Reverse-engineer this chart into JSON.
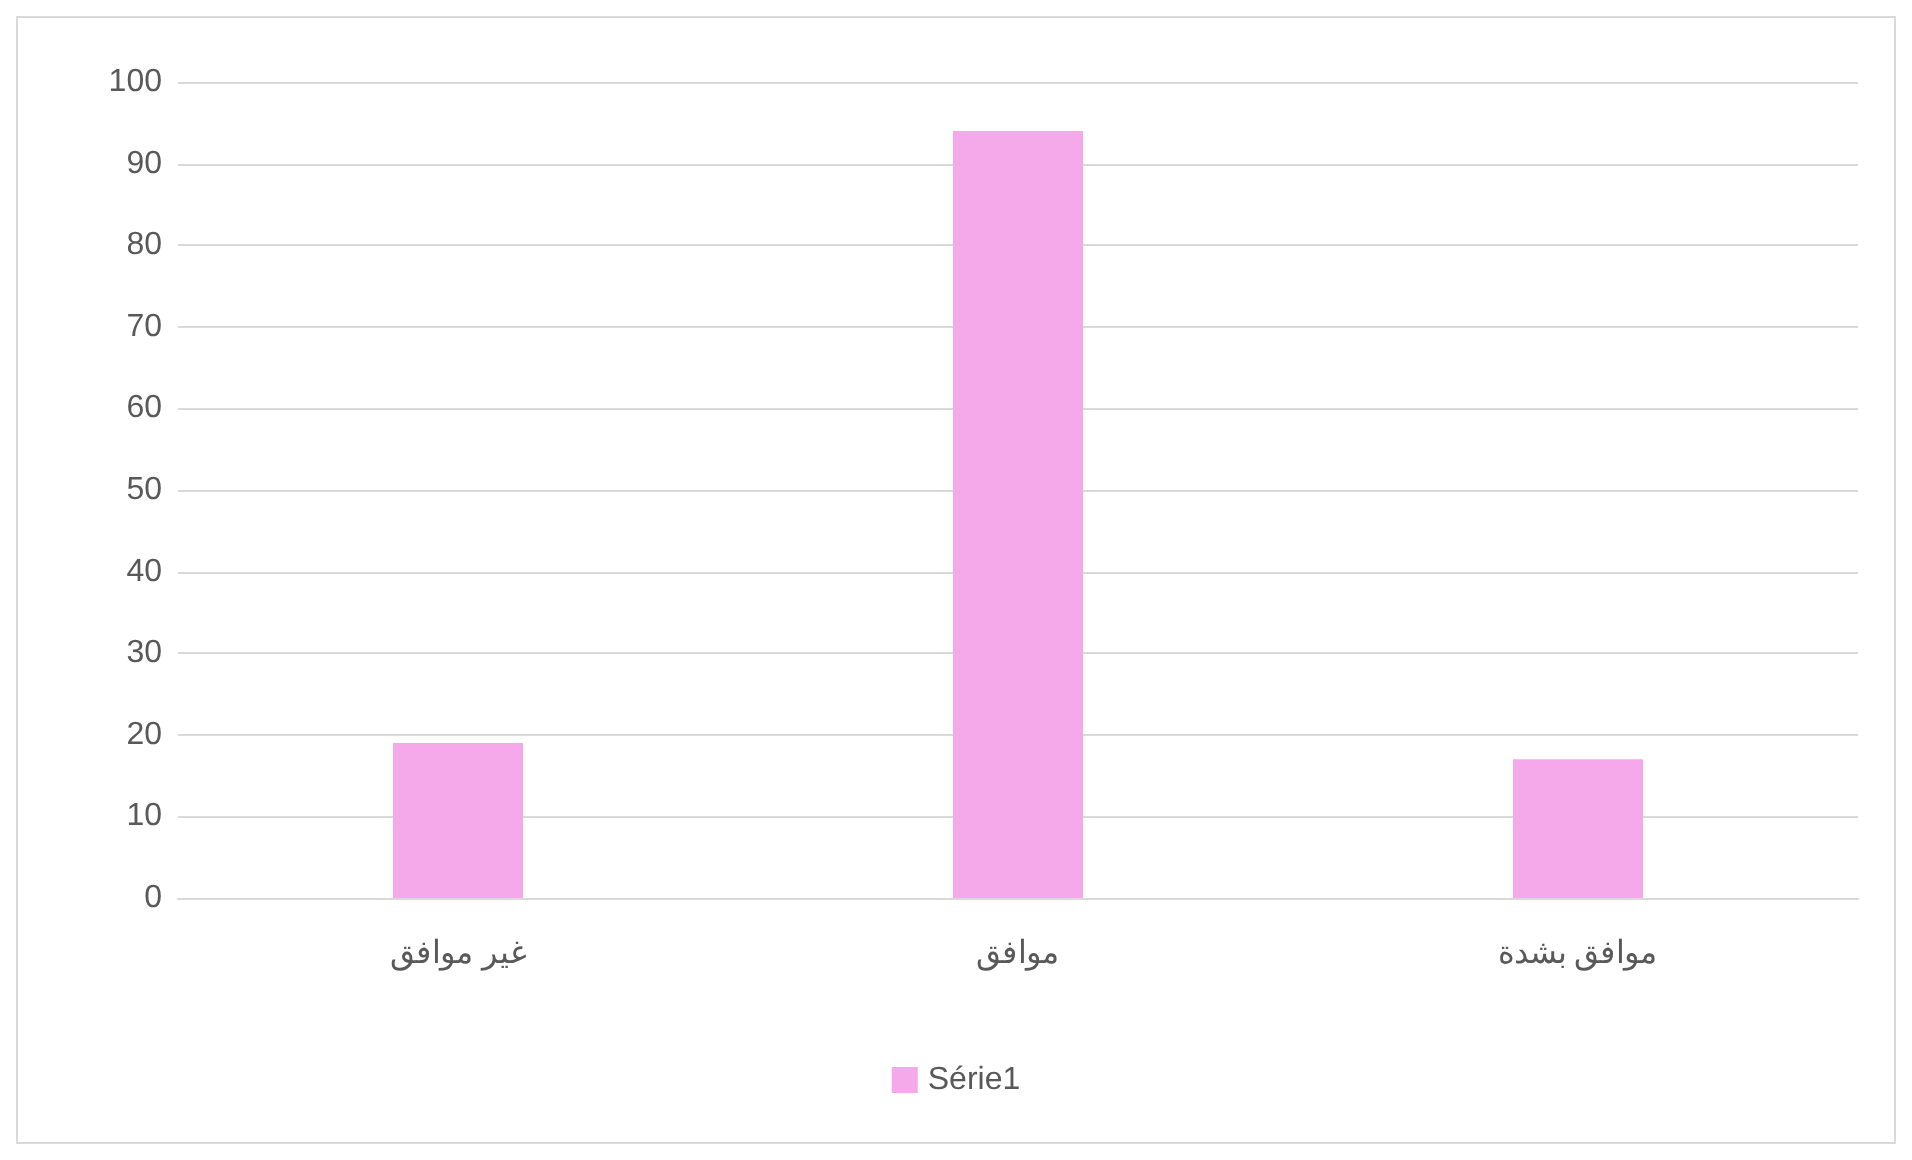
{
  "chart_data": {
    "type": "bar",
    "categories": [
      "غير موافق",
      "موافق",
      "موافق بشدة"
    ],
    "series": [
      {
        "name": "Série1",
        "color": "#f5a9eb",
        "values": [
          19,
          94,
          17
        ]
      }
    ],
    "ylim": [
      0,
      100
    ],
    "yticks": [
      0,
      10,
      20,
      30,
      40,
      50,
      60,
      70,
      80,
      90,
      100
    ],
    "grid": "y",
    "legend": "bottom"
  }
}
